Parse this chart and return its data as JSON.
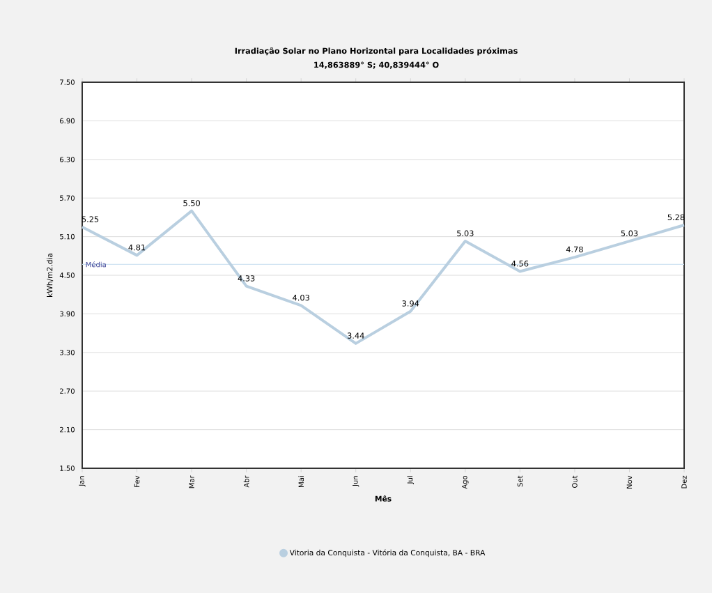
{
  "chart_data": {
    "type": "line",
    "title": "Irradiação Solar no Plano Horizontal para Localidades próximas",
    "subtitle": "14,863889° S;  40,839444° O",
    "xlabel": "Mês",
    "ylabel": "kWh/m2.dia",
    "categories": [
      "Jan",
      "Fev",
      "Mar",
      "Abr",
      "Mai",
      "Jun",
      "Jul",
      "Ago",
      "Set",
      "Out",
      "Nov",
      "Dez"
    ],
    "series": [
      {
        "name": "Vitoria da Conquista - Vitória da Conquista, BA - BRA",
        "color": "#b9cfe0",
        "values": [
          5.25,
          4.81,
          5.5,
          4.33,
          4.03,
          3.44,
          3.94,
          5.03,
          4.56,
          4.78,
          5.03,
          5.28
        ],
        "value_labels": [
          "5.25",
          "4.81",
          "5.50",
          "4.33",
          "4.03",
          "3.44",
          "3.94",
          "5.03",
          "4.56",
          "4.78",
          "5.03",
          "5.28"
        ]
      }
    ],
    "ylim": [
      1.5,
      7.5
    ],
    "yticks": [
      {
        "value": 1.5,
        "label": "1.50"
      },
      {
        "value": 2.1,
        "label": "2.10"
      },
      {
        "value": 2.7,
        "label": "2.70"
      },
      {
        "value": 3.3,
        "label": "3.30"
      },
      {
        "value": 3.9,
        "label": "3.90"
      },
      {
        "value": 4.5,
        "label": "4.50"
      },
      {
        "value": 5.1,
        "label": "5.10"
      },
      {
        "value": 5.7,
        "label": "5.70"
      },
      {
        "value": 6.3,
        "label": "6.30"
      },
      {
        "value": 6.9,
        "label": "6.90"
      },
      {
        "value": 7.5,
        "label": "7.50"
      }
    ],
    "ref_lines": [
      {
        "axis": "y",
        "value": 4.67,
        "label": "Média",
        "color": "#cfe3f2"
      }
    ],
    "grid": "y",
    "legend": "bottom",
    "marker": "none",
    "line_style": "solid"
  }
}
